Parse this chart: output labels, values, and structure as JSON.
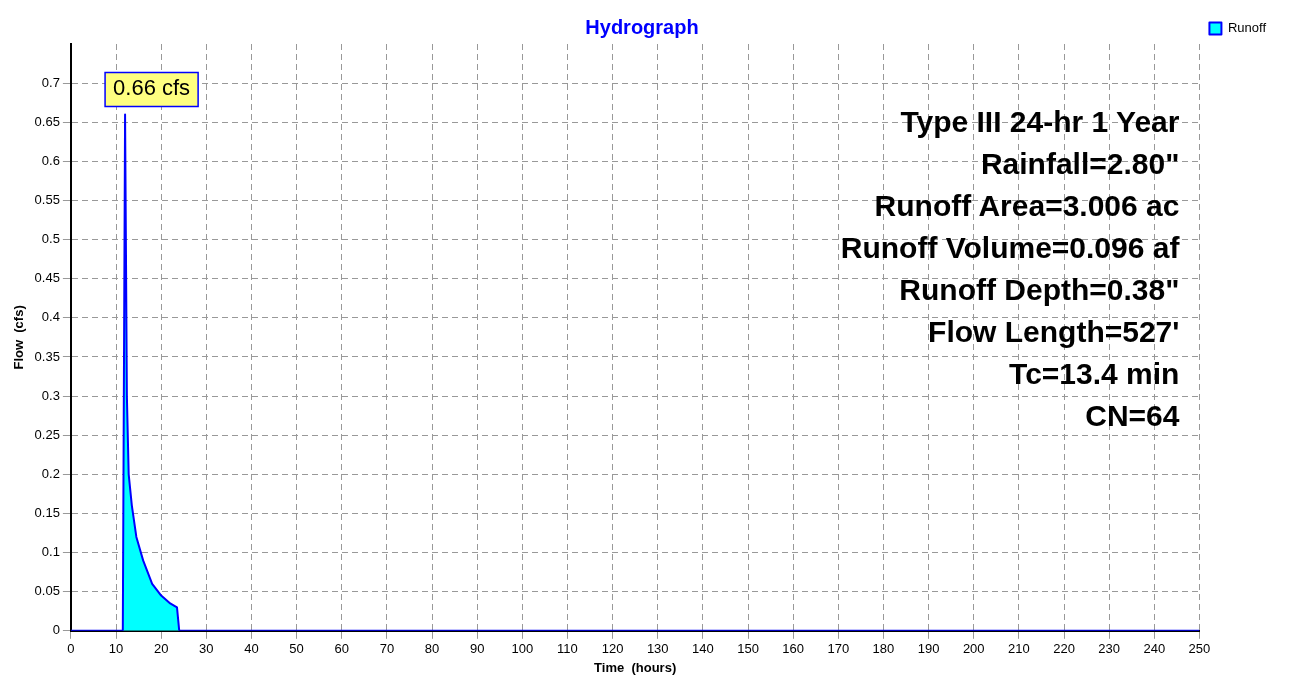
{
  "chart_data": {
    "type": "area",
    "title": "Hydrograph",
    "xlabel": "Time  (hours)",
    "ylabel": "Flow  (cfs)",
    "x": [
      0,
      11.5,
      12,
      12.4,
      12.8,
      13.5,
      14.5,
      16,
      18,
      20,
      22,
      23.5,
      24,
      250
    ],
    "series": [
      {
        "name": "Runoff",
        "color": "#00ffff",
        "values": [
          0,
          0,
          0.66,
          0.3,
          0.2,
          0.16,
          0.12,
          0.09,
          0.06,
          0.045,
          0.035,
          0.03,
          0,
          0
        ]
      }
    ],
    "xlim": [
      0,
      250
    ],
    "xticks": [
      0,
      10,
      20,
      30,
      40,
      50,
      60,
      70,
      80,
      90,
      100,
      110,
      120,
      130,
      140,
      150,
      160,
      170,
      180,
      190,
      200,
      210,
      220,
      230,
      240,
      250
    ],
    "ylim": [
      0,
      0.75
    ],
    "yticks": [
      0,
      0.05,
      0.1,
      0.15,
      0.2,
      0.25,
      0.3,
      0.35,
      0.4,
      0.45,
      0.5,
      0.55,
      0.6,
      0.65,
      0.7
    ],
    "grid": true,
    "legend": "top right",
    "annotations": [
      {
        "text": "0.66 cfs",
        "x": 12,
        "y": 0.66
      },
      "Type III 24-hr 1 Year",
      "Rainfall=2.80\"",
      "Runoff Area=3.006 ac",
      "Runoff Volume=0.096 af",
      "Runoff Depth=0.38\"",
      "Flow Length=527'",
      "Tc=13.4 min",
      "CN=64"
    ]
  }
}
